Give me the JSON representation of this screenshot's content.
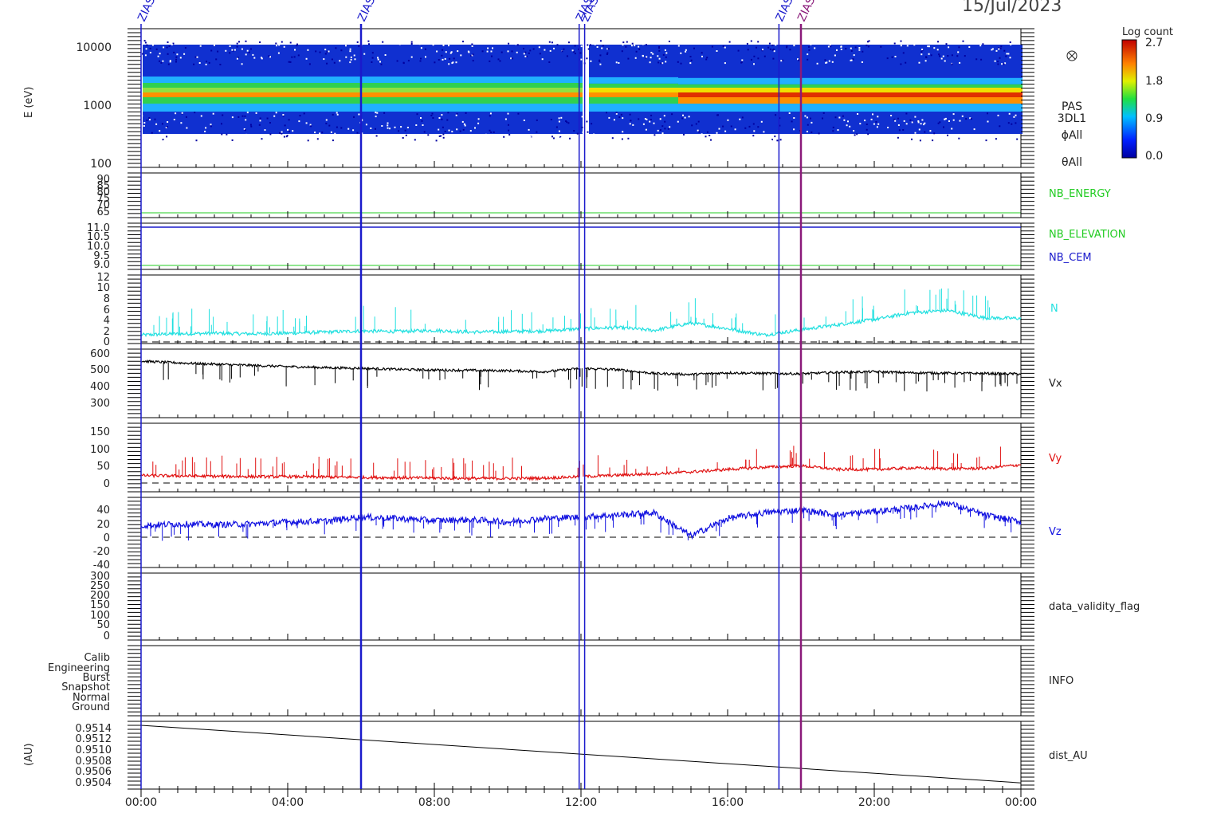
{
  "header": {
    "date": "15/Jul/2023"
  },
  "colorbar": {
    "title": "Log count",
    "ticks": [
      "2.7",
      "1.8",
      "0.9",
      "0.0"
    ]
  },
  "x_axis": {
    "ticks": [
      "00:00",
      "04:00",
      "08:00",
      "12:00",
      "16:00",
      "20:00",
      "00:00"
    ]
  },
  "markers": [
    {
      "label": "ZIAS",
      "time_h": 0.0,
      "color": "#1a1acc"
    },
    {
      "label": "ZIAS",
      "time_h": 6.0,
      "color": "#1a1acc"
    },
    {
      "label": "ZIAS",
      "time_h": 11.95,
      "color": "#1a1acc"
    },
    {
      "label": "ZIAS",
      "time_h": 12.1,
      "color": "#1a1acc"
    },
    {
      "label": "ZIAS",
      "time_h": 17.4,
      "color": "#1a1acc"
    },
    {
      "label": "ZIAS",
      "time_h": 18.0,
      "color": "#8a1a7a"
    }
  ],
  "panels": {
    "spectrogram": {
      "ylabel": "E (eV)",
      "yticks": [
        "10000",
        "1000",
        "100"
      ],
      "right_labels": [
        "PAS",
        "3DL1",
        "ϕAll",
        "θAll"
      ],
      "icon": "circled-x-icon"
    },
    "nb_energy": {
      "label": "NB_ENERGY",
      "yticks": [
        "90",
        "85",
        "80",
        "75",
        "70",
        "65"
      ],
      "value": 65
    },
    "nb_elev": {
      "label_elev": "NB_ELEVATION",
      "label_cem": "NB_CEM",
      "yticks": [
        "11.0",
        "10.5",
        "10.0",
        "9.5",
        "9.0"
      ],
      "elevation": 9.0,
      "cem": 11.0
    },
    "density": {
      "label": "N",
      "yticks": [
        "12",
        "10",
        "8",
        "6",
        "4",
        "2",
        "0"
      ],
      "color": "#22e0e0"
    },
    "vx": {
      "label": "Vx",
      "yticks": [
        "600",
        "500",
        "400",
        "300"
      ],
      "color": "#000000"
    },
    "vy": {
      "label": "Vy",
      "yticks": [
        "150",
        "100",
        "50",
        "0"
      ],
      "color": "#e01010"
    },
    "vz": {
      "label": "Vz",
      "yticks": [
        "40",
        "20",
        "0",
        "-20",
        "-40"
      ],
      "color": "#1010e0"
    },
    "validity": {
      "label": "data_validity_flag",
      "yticks": [
        "300",
        "250",
        "200",
        "150",
        "100",
        "50",
        "0"
      ]
    },
    "info": {
      "label": "INFO",
      "yticks": [
        "Calib",
        "Engineering",
        "Burst",
        "Snapshot",
        "Normal",
        "Ground"
      ]
    },
    "dist": {
      "label": "dist_AU",
      "ylabel": "(AU)",
      "yticks": [
        "0.9514",
        "0.9512",
        "0.9510",
        "0.9508",
        "0.9506",
        "0.9504"
      ]
    }
  },
  "chart_data": [
    {
      "type": "line",
      "title": "N",
      "x_hours": [
        0,
        1,
        2,
        3,
        4,
        5,
        6,
        7,
        8,
        9,
        10,
        11,
        12,
        13,
        14,
        15,
        16,
        17,
        18,
        19,
        20,
        21,
        22,
        23,
        24
      ],
      "values": [
        1.5,
        1.7,
        1.8,
        1.7,
        1.8,
        2.0,
        2.2,
        2.1,
        2.3,
        2.0,
        2.1,
        2.2,
        2.6,
        2.8,
        2.3,
        3.6,
        2.6,
        1.5,
        2.4,
        3.3,
        4.2,
        5.4,
        5.8,
        4.5,
        4.4
      ],
      "ylim": [
        0,
        12
      ]
    },
    {
      "type": "line",
      "title": "Vx",
      "x_hours": [
        0,
        1,
        2,
        3,
        4,
        5,
        6,
        7,
        8,
        9,
        10,
        11,
        12,
        13,
        14,
        15,
        16,
        17,
        18,
        19,
        20,
        21,
        22,
        23,
        24
      ],
      "values": [
        530,
        520,
        512,
        505,
        498,
        492,
        488,
        482,
        478,
        476,
        474,
        468,
        488,
        480,
        458,
        452,
        462,
        458,
        456,
        465,
        468,
        462,
        460,
        458,
        455
      ],
      "ylim": [
        200,
        600
      ]
    },
    {
      "type": "line",
      "title": "Vy",
      "x_hours": [
        0,
        1,
        2,
        3,
        4,
        5,
        6,
        7,
        8,
        9,
        10,
        11,
        12,
        13,
        14,
        15,
        16,
        17,
        18,
        19,
        20,
        21,
        22,
        23,
        24
      ],
      "values": [
        25,
        24,
        23,
        22,
        22,
        21,
        20,
        19,
        18,
        17,
        17,
        18,
        22,
        26,
        30,
        35,
        42,
        48,
        52,
        42,
        42,
        46,
        44,
        45,
        55
      ],
      "ylim": [
        -20,
        170
      ]
    },
    {
      "type": "line",
      "title": "Vz",
      "x_hours": [
        0,
        1,
        2,
        3,
        4,
        5,
        6,
        7,
        8,
        9,
        10,
        11,
        12,
        13,
        14,
        15,
        16,
        17,
        18,
        19,
        20,
        21,
        22,
        23,
        24
      ],
      "values": [
        10,
        12,
        11,
        12,
        15,
        16,
        22,
        20,
        17,
        18,
        15,
        20,
        22,
        25,
        28,
        -5,
        20,
        28,
        32,
        25,
        30,
        35,
        42,
        25,
        15
      ],
      "ylim": [
        -50,
        50
      ]
    },
    {
      "type": "line",
      "title": "dist_AU",
      "x_hours": [
        0,
        24
      ],
      "values": [
        0.95143,
        0.95041
      ],
      "ylim": [
        0.9503,
        0.9515
      ]
    }
  ]
}
